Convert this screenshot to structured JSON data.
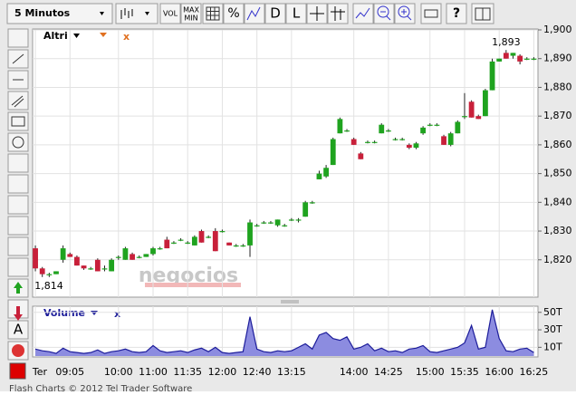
{
  "toolbar": {
    "interval": "5 Minutos",
    "vol": "VOL",
    "max": "MAX",
    "min": "MIN",
    "percent": "%",
    "d": "D",
    "l": "L",
    "help": "?"
  },
  "watermark": "negocios",
  "footer": "Flash Charts © 2012 Tel Trader Software",
  "chart_data": [
    {
      "type": "candlestick",
      "legend": "Altri",
      "legend_close": "x",
      "up_color": "#1fa31f",
      "down_color": "#c8203a",
      "categories": [
        "Ter",
        null,
        null,
        null,
        null,
        "09:05",
        null,
        null,
        null,
        null,
        null,
        null,
        "10:00",
        null,
        null,
        null,
        null,
        "11:00",
        null,
        null,
        null,
        null,
        "11:35",
        null,
        null,
        null,
        null,
        "12:00",
        null,
        null,
        null,
        null,
        "12:40",
        null,
        null,
        null,
        null,
        "13:15",
        null,
        null,
        null,
        null,
        null,
        null,
        null,
        null,
        "14:00",
        null,
        null,
        null,
        null,
        "14:25",
        null,
        null,
        null,
        null,
        null,
        "15:00",
        null,
        null,
        null,
        null,
        "15:35",
        null,
        null,
        null,
        null,
        "16:00",
        null,
        null,
        null,
        null,
        "16:25"
      ],
      "open": [
        1824,
        1817,
        1815,
        1815,
        1820,
        1822,
        1821,
        1818,
        1817,
        1820,
        1817,
        1816,
        1821,
        1820,
        1822,
        1821,
        1821,
        1822,
        1824,
        1827,
        1826,
        1827,
        1826,
        1825,
        1830,
        1828,
        1830,
        1830,
        1826,
        1825,
        1825,
        1825,
        1832,
        1833,
        1833,
        1832,
        1832,
        1834,
        1834,
        1835,
        1840,
        1848,
        1849,
        1853,
        1864,
        1865,
        1862,
        1857,
        1861,
        1861,
        1864,
        1865,
        1862,
        1862,
        1860,
        1859,
        1864,
        1867,
        1867,
        1863,
        1860,
        1864,
        1870,
        1875,
        1870,
        1870,
        1879,
        1889,
        1892,
        1891,
        1891,
        1890,
        1890
      ],
      "high": [
        1825,
        1817.5,
        1815.5,
        1816,
        1825,
        1822.5,
        1821.5,
        1818,
        1817.5,
        1820.5,
        1818,
        1820.5,
        1821.5,
        1824.5,
        1822.5,
        1821.5,
        1822,
        1824.5,
        1824.5,
        1828,
        1826.5,
        1827.5,
        1826.5,
        1828.5,
        1830.5,
        1828.5,
        1831,
        1830.5,
        1826,
        1825.5,
        1825.5,
        1834,
        1832.5,
        1833.5,
        1833.5,
        1834,
        1832.5,
        1834.5,
        1834.5,
        1840.5,
        1840.5,
        1851,
        1853,
        1862.5,
        1869.5,
        1865.5,
        1862.5,
        1857.5,
        1861.5,
        1861.5,
        1867.5,
        1865.5,
        1862.5,
        1862.5,
        1860.5,
        1861,
        1866.5,
        1867.5,
        1867.5,
        1863.5,
        1864.5,
        1868.5,
        1878,
        1875.5,
        1870.5,
        1879.5,
        1890,
        1890,
        1893,
        1892,
        1891.5,
        1890.5,
        1890.5
      ],
      "low": [
        1816,
        1814,
        1814,
        1815,
        1819,
        1821,
        1818,
        1816.5,
        1816.5,
        1816,
        1816,
        1816,
        1820,
        1820,
        1820,
        1820.5,
        1821,
        1821.5,
        1823.5,
        1824,
        1825.5,
        1826.5,
        1825.5,
        1825,
        1826,
        1827.5,
        1823,
        1829.5,
        1825,
        1824.5,
        1824.5,
        1821,
        1831.5,
        1832.5,
        1832.5,
        1831.5,
        1831.5,
        1833.5,
        1833,
        1835,
        1839.5,
        1848,
        1848.5,
        1853,
        1864,
        1864.5,
        1860,
        1855,
        1860.5,
        1860.5,
        1864,
        1864.5,
        1861.5,
        1861.5,
        1858.5,
        1858.5,
        1863.5,
        1866.5,
        1866.5,
        1860,
        1859.5,
        1864,
        1869,
        1869.5,
        1869,
        1870,
        1879,
        1889,
        1890,
        1890,
        1888,
        1889.5,
        1889.5
      ],
      "close": [
        1817,
        1815,
        1815,
        1816,
        1824,
        1821,
        1818,
        1817,
        1817,
        1816,
        1817,
        1820,
        1821,
        1824,
        1820,
        1821,
        1822,
        1824,
        1824,
        1824,
        1826,
        1827,
        1826,
        1828,
        1826,
        1828,
        1823,
        1830,
        1825,
        1825,
        1825,
        1833,
        1832,
        1833,
        1833,
        1834,
        1832,
        1834,
        1834,
        1840,
        1840,
        1850,
        1852,
        1862,
        1869,
        1865,
        1860,
        1855,
        1861,
        1861,
        1867,
        1865,
        1862,
        1862,
        1859,
        1860.5,
        1866,
        1867,
        1867,
        1860,
        1864,
        1868,
        1870,
        1869.5,
        1869,
        1879,
        1889,
        1890,
        1890,
        1892,
        1889,
        1890,
        1890
      ],
      "ylim": [
        1807,
        1900
      ],
      "yticks": [
        {
          "value": 1820,
          "label": "1,820"
        },
        {
          "value": 1830,
          "label": "1,830"
        },
        {
          "value": 1840,
          "label": "1,840"
        },
        {
          "value": 1850,
          "label": "1,850"
        },
        {
          "value": 1860,
          "label": "1,860"
        },
        {
          "value": 1870,
          "label": "1,870"
        },
        {
          "value": 1880,
          "label": "1,880"
        },
        {
          "value": 1890,
          "label": "1,890"
        },
        {
          "value": 1900,
          "label": "1,900"
        }
      ],
      "annotations": [
        {
          "value": 1893,
          "label": "1,893"
        },
        {
          "value": 1814,
          "label": "1,814"
        }
      ],
      "grid": true
    },
    {
      "type": "area",
      "legend": "Volume",
      "legend_close": "x",
      "color": "#8c8ce0",
      "line_color": "#1c1c9a",
      "values": [
        8,
        6,
        5,
        3,
        9,
        5,
        4,
        3,
        4,
        7,
        3,
        5,
        6,
        8,
        5,
        4,
        5,
        12,
        6,
        4,
        5,
        6,
        4,
        7,
        9,
        5,
        10,
        4,
        3,
        4,
        5,
        45,
        8,
        5,
        4,
        6,
        5,
        6,
        10,
        14,
        8,
        24,
        27,
        20,
        18,
        22,
        8,
        10,
        14,
        6,
        9,
        5,
        6,
        4,
        8,
        9,
        12,
        5,
        4,
        6,
        8,
        10,
        15,
        35,
        8,
        10,
        53,
        20,
        6,
        5,
        8,
        9,
        4
      ],
      "ylim": [
        0,
        57
      ],
      "yticks": [
        {
          "value": 10,
          "label": "10T"
        },
        {
          "value": 30,
          "label": "30T"
        },
        {
          "value": 50,
          "label": "50T"
        }
      ],
      "grid": true
    }
  ]
}
